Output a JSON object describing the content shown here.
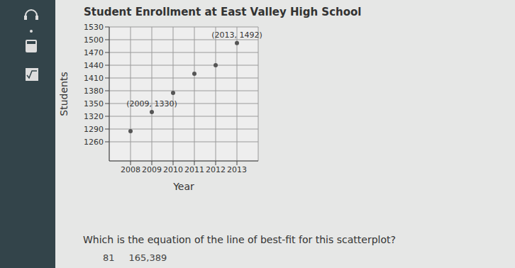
{
  "chart_data": {
    "type": "scatter",
    "title": "Student Enrollment at East Valley High School",
    "x_label": "Year",
    "y_label": "Students",
    "x": [
      2008,
      2009,
      2010,
      2011,
      2012,
      2013
    ],
    "values": [
      1285,
      1330,
      1375,
      1420,
      1440,
      1492
    ],
    "color": "#555555",
    "marker": "circle",
    "xlim": [
      2007,
      2014
    ],
    "xticks": [
      2008,
      2009,
      2010,
      2011,
      2012,
      2013
    ],
    "ylim": [
      1215,
      1530
    ],
    "yticks": [
      1260,
      1290,
      1320,
      1350,
      1380,
      1410,
      1440,
      1470,
      1500,
      1530
    ],
    "grid": true,
    "annotations": [
      {
        "x": 2013,
        "y": 1492,
        "text": "(2013, 1492)"
      },
      {
        "x": 2009,
        "y": 1330,
        "text": "(2009, 1330)"
      }
    ]
  },
  "question": "Which is the equation of the line of best-fit for this scatterplot?",
  "answer_fragments": [
    "81",
    "165,389"
  ]
}
